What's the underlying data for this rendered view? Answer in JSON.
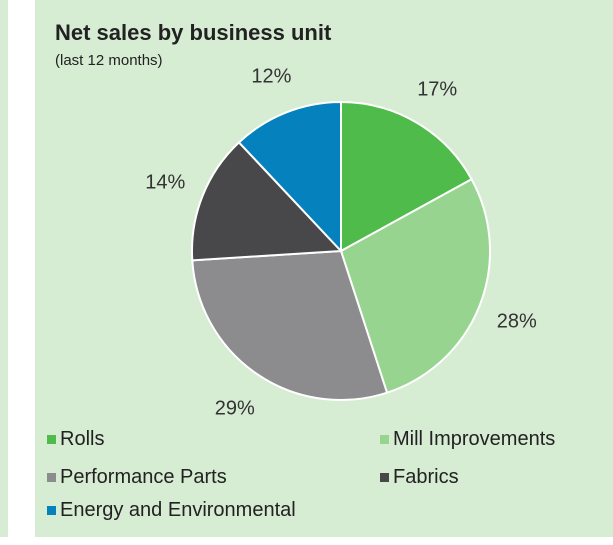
{
  "chart_data": {
    "type": "pie",
    "title": "Net sales by business unit",
    "subtitle": "(last 12 months)",
    "categories": [
      "Rolls",
      "Mill Improvements",
      "Performance Parts",
      "Fabrics",
      "Energy and Environmental"
    ],
    "values": [
      17,
      28,
      29,
      14,
      12
    ],
    "value_labels": [
      "17%",
      "28%",
      "29%",
      "14%",
      "12%"
    ],
    "colors": [
      "#4fbb4a",
      "#97d490",
      "#8c8c8e",
      "#48484b",
      "#0582bd"
    ],
    "legend_position": "bottom"
  }
}
